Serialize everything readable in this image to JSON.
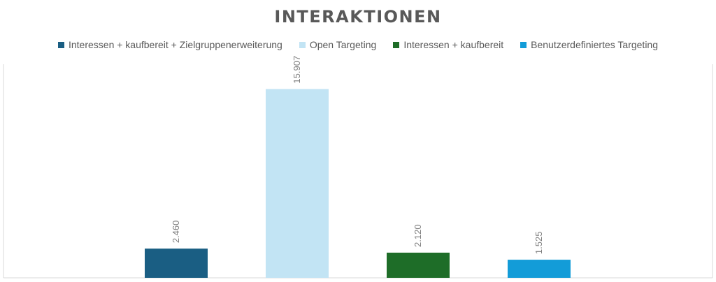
{
  "chart_data": {
    "type": "bar",
    "title": "INTERAKTIONEN",
    "xlabel": "",
    "ylabel": "",
    "categories": [
      "Interessen + kaufbereit + Zielgruppenerweiterung",
      "Open Targeting",
      "Interessen + kaufbereit",
      "Benutzerdefiniertes Targeting"
    ],
    "values": [
      2460,
      15907,
      2120,
      1525
    ],
    "value_labels": [
      "2.460",
      "15.907",
      "2.120",
      "1.525"
    ],
    "colors": [
      "#1a5e83",
      "#c2e4f4",
      "#1e6d28",
      "#139cd8"
    ],
    "ylim": [
      0,
      18000
    ],
    "grid": false,
    "legend_position": "top",
    "data_label_rotation": -90
  }
}
